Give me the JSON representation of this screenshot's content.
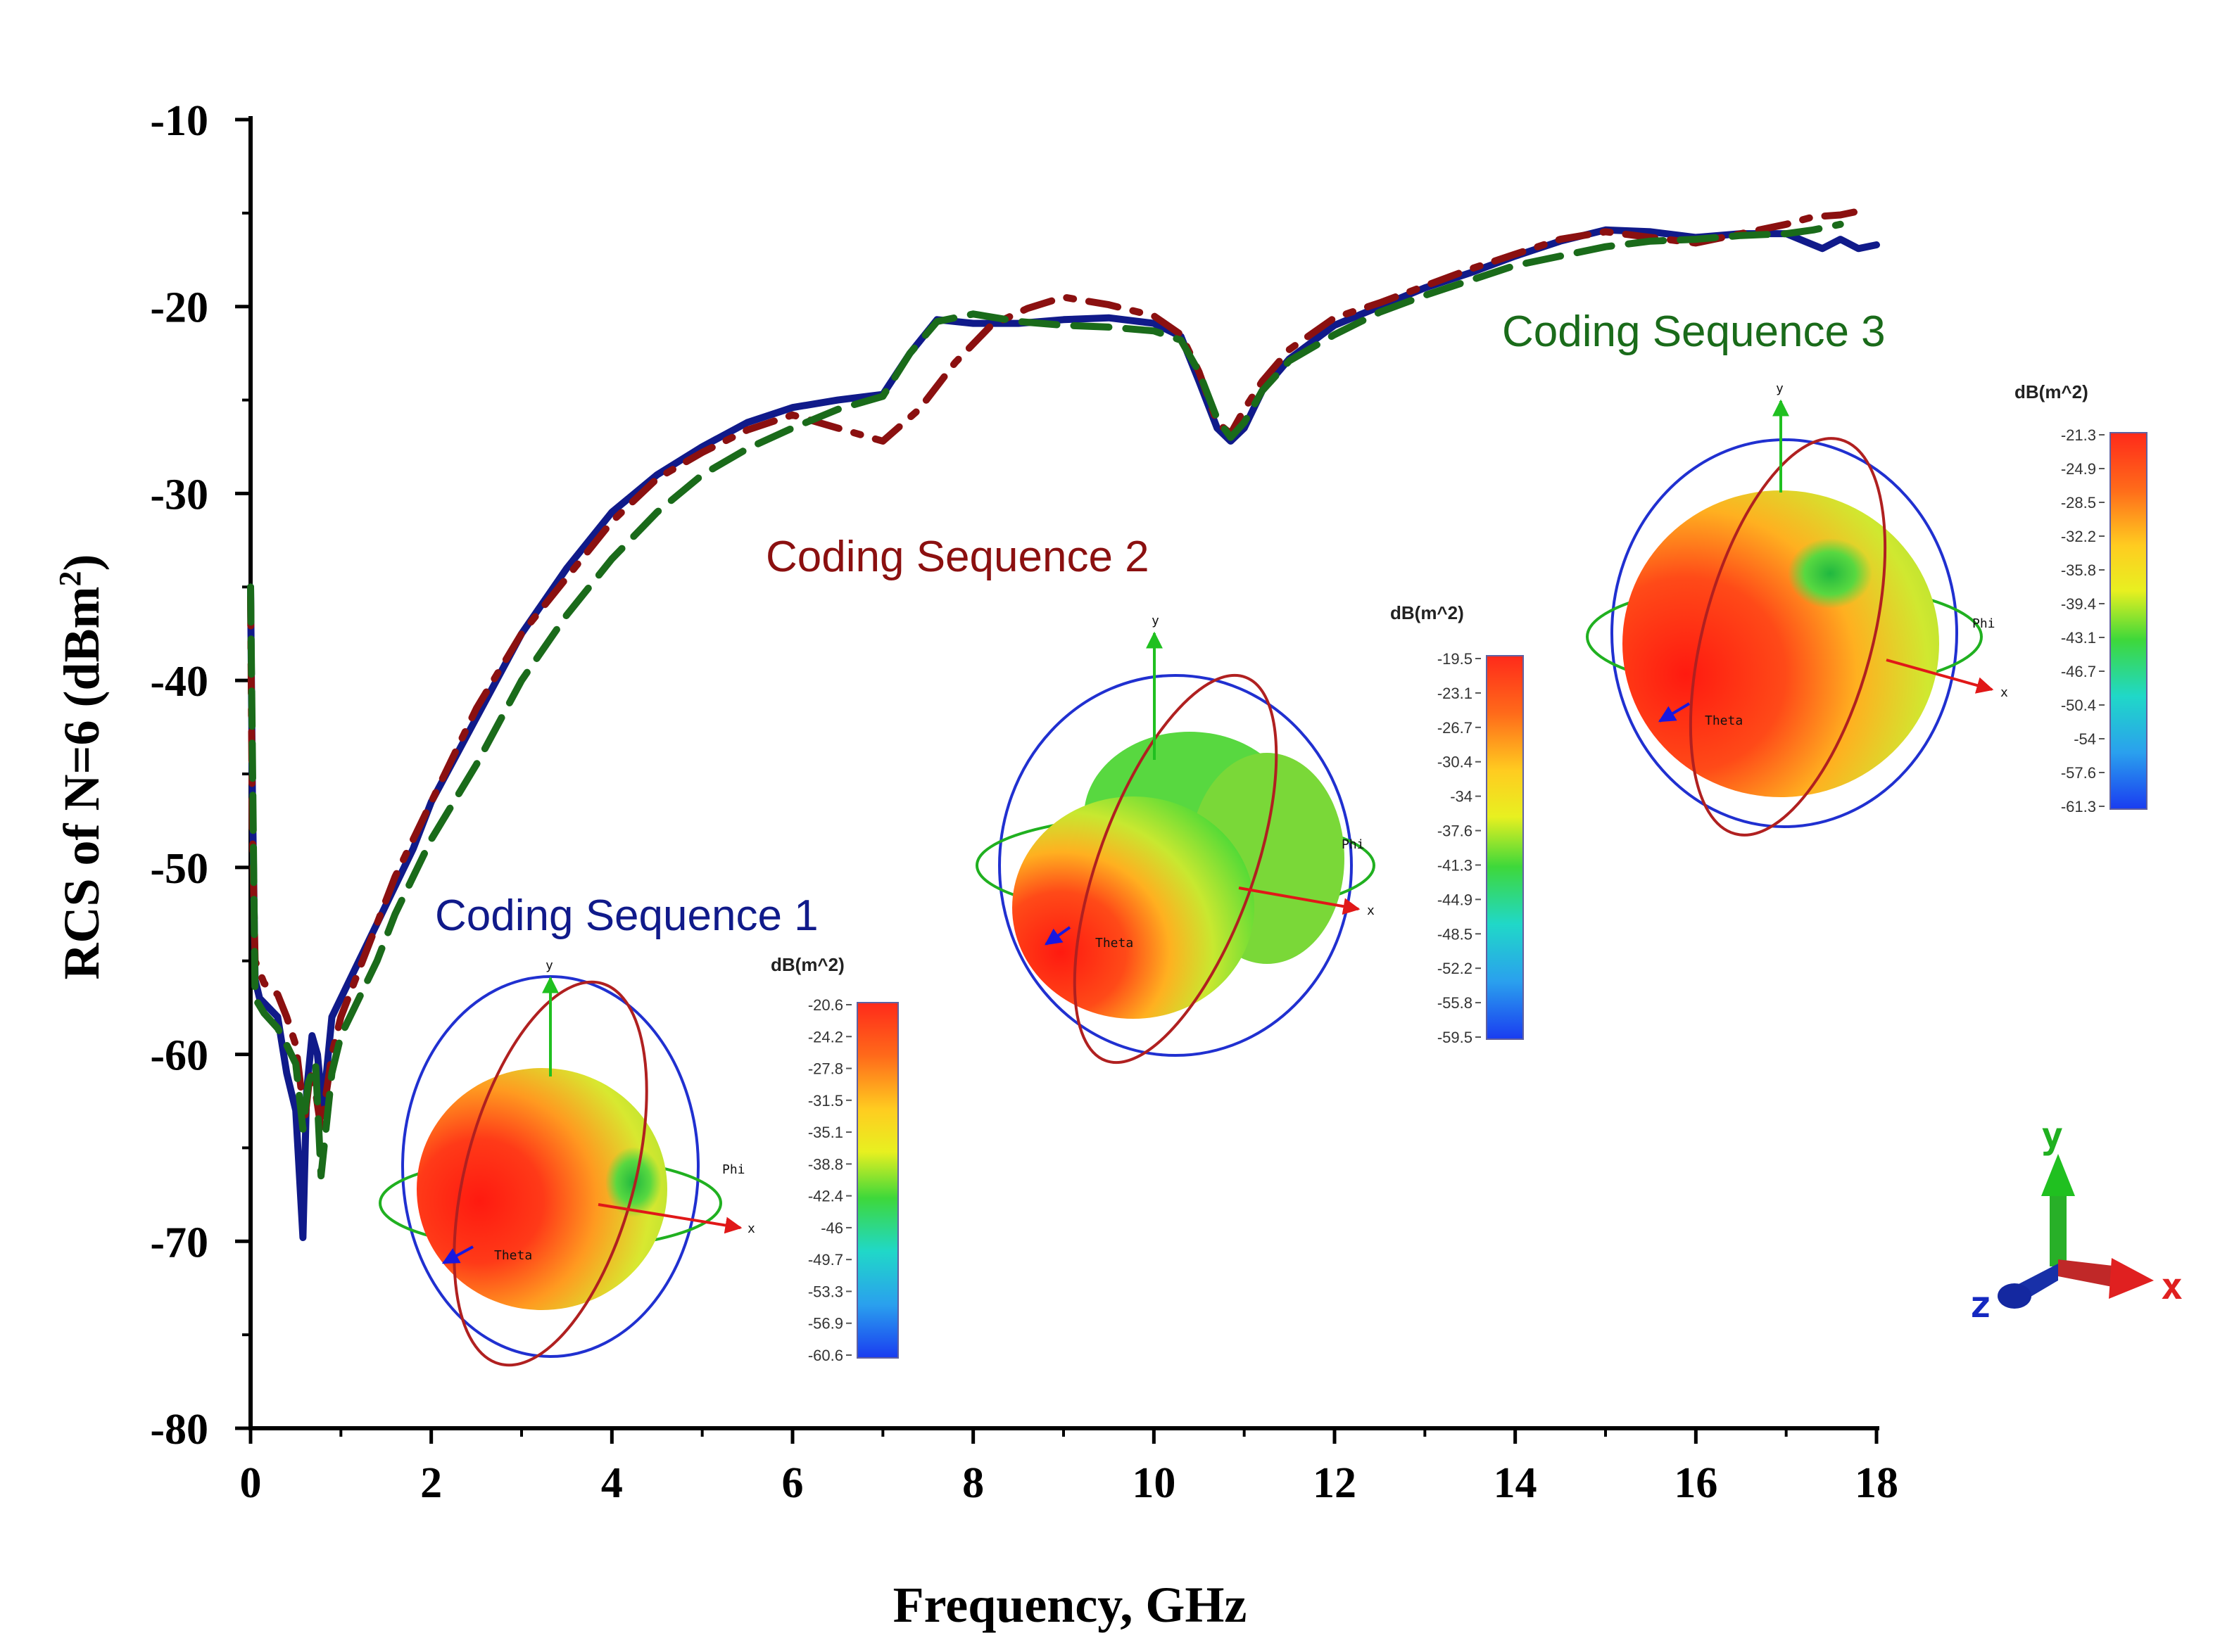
{
  "chart_data": {
    "type": "line",
    "xlabel": "Frequency, GHz",
    "ylabel": "RCS of N=6 (dBm",
    "ylabel_sup": "2",
    "ylabel_close": ")",
    "xlim": [
      0,
      18
    ],
    "ylim": [
      -80,
      -10
    ],
    "xticks": [
      0,
      2,
      4,
      6,
      8,
      10,
      12,
      14,
      16,
      18
    ],
    "xtick_labels": [
      "0",
      "2",
      "4",
      "6",
      "8",
      "10",
      "12",
      "14",
      "16",
      "18"
    ],
    "yticks": [
      -10,
      -20,
      -30,
      -40,
      -50,
      -60,
      -70,
      -80
    ],
    "ytick_labels": [
      "-10",
      "-20",
      "-30",
      "-40",
      "-50",
      "-60",
      "-70",
      "-80"
    ],
    "series": [
      {
        "name": "Coding Sequence 1",
        "color": "#101a8a",
        "style": "solid",
        "points": [
          [
            0,
            -35
          ],
          [
            0.02,
            -46
          ],
          [
            0.05,
            -56
          ],
          [
            0.1,
            -57
          ],
          [
            0.2,
            -57.5
          ],
          [
            0.3,
            -58
          ],
          [
            0.4,
            -61
          ],
          [
            0.5,
            -63
          ],
          [
            0.58,
            -69.8
          ],
          [
            0.62,
            -62
          ],
          [
            0.68,
            -59
          ],
          [
            0.74,
            -60
          ],
          [
            0.8,
            -63
          ],
          [
            0.9,
            -58
          ],
          [
            1.0,
            -57
          ],
          [
            1.2,
            -55
          ],
          [
            1.4,
            -53
          ],
          [
            1.6,
            -51
          ],
          [
            1.8,
            -49
          ],
          [
            2,
            -46.5
          ],
          [
            2.5,
            -42
          ],
          [
            3,
            -37.5
          ],
          [
            3.5,
            -34
          ],
          [
            4,
            -31
          ],
          [
            4.5,
            -29
          ],
          [
            5,
            -27.5
          ],
          [
            5.5,
            -26.2
          ],
          [
            6,
            -25.4
          ],
          [
            6.5,
            -25
          ],
          [
            7,
            -24.7
          ],
          [
            7.3,
            -22.5
          ],
          [
            7.6,
            -20.7
          ],
          [
            8,
            -20.9
          ],
          [
            8.5,
            -20.9
          ],
          [
            9,
            -20.7
          ],
          [
            9.5,
            -20.6
          ],
          [
            10,
            -20.9
          ],
          [
            10.3,
            -21.6
          ],
          [
            10.5,
            -24
          ],
          [
            10.7,
            -26.5
          ],
          [
            10.85,
            -27.2
          ],
          [
            11,
            -26.5
          ],
          [
            11.2,
            -24.5
          ],
          [
            11.5,
            -22.8
          ],
          [
            12,
            -21
          ],
          [
            12.5,
            -20
          ],
          [
            13,
            -19
          ],
          [
            13.5,
            -18.2
          ],
          [
            14,
            -17.3
          ],
          [
            14.5,
            -16.5
          ],
          [
            15,
            -15.9
          ],
          [
            15.5,
            -16
          ],
          [
            16,
            -16.3
          ],
          [
            16.5,
            -16.1
          ],
          [
            17,
            -16.1
          ],
          [
            17.2,
            -16.5
          ],
          [
            17.4,
            -16.9
          ],
          [
            17.6,
            -16.4
          ],
          [
            17.8,
            -16.9
          ],
          [
            18,
            -16.7
          ]
        ]
      },
      {
        "name": "Coding Sequence 2",
        "color": "#8b1010",
        "style": "dashdot",
        "points": [
          [
            0,
            -35.5
          ],
          [
            0.02,
            -48
          ],
          [
            0.05,
            -55
          ],
          [
            0.15,
            -56.2
          ],
          [
            0.3,
            -56.8
          ],
          [
            0.4,
            -58
          ],
          [
            0.5,
            -59.5
          ],
          [
            0.6,
            -63.5
          ],
          [
            0.66,
            -61
          ],
          [
            0.72,
            -62
          ],
          [
            0.78,
            -64
          ],
          [
            0.9,
            -60
          ],
          [
            1.0,
            -58
          ],
          [
            1.2,
            -55.5
          ],
          [
            1.4,
            -53
          ],
          [
            1.6,
            -50.5
          ],
          [
            1.8,
            -48.5
          ],
          [
            2,
            -46.5
          ],
          [
            2.5,
            -41.5
          ],
          [
            3,
            -37.5
          ],
          [
            3.5,
            -34.5
          ],
          [
            4,
            -31.5
          ],
          [
            4.5,
            -29.2
          ],
          [
            5,
            -27.8
          ],
          [
            5.5,
            -26.6
          ],
          [
            6,
            -25.8
          ],
          [
            6.5,
            -26.5
          ],
          [
            7,
            -27.2
          ],
          [
            7.4,
            -25.5
          ],
          [
            7.8,
            -23
          ],
          [
            8.2,
            -21
          ],
          [
            8.6,
            -20.1
          ],
          [
            9,
            -19.5
          ],
          [
            9.5,
            -19.9
          ],
          [
            10,
            -20.5
          ],
          [
            10.3,
            -21.5
          ],
          [
            10.5,
            -23.5
          ],
          [
            10.7,
            -26.2
          ],
          [
            10.85,
            -26.8
          ],
          [
            11,
            -25.5
          ],
          [
            11.2,
            -24
          ],
          [
            11.5,
            -22.3
          ],
          [
            12,
            -20.6
          ],
          [
            12.5,
            -19.8
          ],
          [
            13,
            -18.9
          ],
          [
            13.5,
            -18
          ],
          [
            14,
            -17.2
          ],
          [
            14.5,
            -16.4
          ],
          [
            15,
            -16
          ],
          [
            15.5,
            -16.3
          ],
          [
            16,
            -16.6
          ],
          [
            16.5,
            -16.1
          ],
          [
            17,
            -15.6
          ],
          [
            17.3,
            -15.2
          ],
          [
            17.6,
            -15.1
          ],
          [
            17.8,
            -14.9
          ]
        ]
      },
      {
        "name": "Coding Sequence 3",
        "color": "#1a6b1a",
        "style": "dashed",
        "points": [
          [
            0,
            -35
          ],
          [
            0.02,
            -44
          ],
          [
            0.05,
            -57
          ],
          [
            0.15,
            -57.8
          ],
          [
            0.3,
            -58.6
          ],
          [
            0.4,
            -59.5
          ],
          [
            0.5,
            -60.5
          ],
          [
            0.58,
            -64
          ],
          [
            0.64,
            -61.5
          ],
          [
            0.72,
            -60.5
          ],
          [
            0.78,
            -66.5
          ],
          [
            0.9,
            -61
          ],
          [
            1.0,
            -59
          ],
          [
            1.2,
            -57
          ],
          [
            1.4,
            -55
          ],
          [
            1.6,
            -52.5
          ],
          [
            1.8,
            -50.5
          ],
          [
            2,
            -48.5
          ],
          [
            2.5,
            -44.5
          ],
          [
            3,
            -40
          ],
          [
            3.5,
            -36.5
          ],
          [
            4,
            -33.5
          ],
          [
            4.5,
            -31
          ],
          [
            5,
            -29
          ],
          [
            5.5,
            -27.6
          ],
          [
            6,
            -26.5
          ],
          [
            6.5,
            -25.5
          ],
          [
            7,
            -24.8
          ],
          [
            7.3,
            -22.5
          ],
          [
            7.6,
            -20.8
          ],
          [
            8,
            -20.4
          ],
          [
            8.5,
            -20.8
          ],
          [
            9,
            -21
          ],
          [
            9.5,
            -21.1
          ],
          [
            10,
            -21.3
          ],
          [
            10.3,
            -21.8
          ],
          [
            10.5,
            -23.5
          ],
          [
            10.7,
            -26
          ],
          [
            10.85,
            -27
          ],
          [
            11,
            -26.2
          ],
          [
            11.2,
            -24.5
          ],
          [
            11.5,
            -22.9
          ],
          [
            12,
            -21.5
          ],
          [
            12.5,
            -20.3
          ],
          [
            13,
            -19.4
          ],
          [
            13.5,
            -18.6
          ],
          [
            14,
            -17.8
          ],
          [
            14.5,
            -17.3
          ],
          [
            15,
            -16.8
          ],
          [
            15.5,
            -16.5
          ],
          [
            16,
            -16.4
          ],
          [
            16.5,
            -16.2
          ],
          [
            17,
            -16.1
          ],
          [
            17.3,
            -15.9
          ],
          [
            17.6,
            -15.6
          ]
        ]
      }
    ],
    "annotations": [
      {
        "text": "Coding Sequence 1",
        "color": "#101a8a"
      },
      {
        "text": "Coding Sequence 2",
        "color": "#8b1010"
      },
      {
        "text": "Coding Sequence 3",
        "color": "#1a6b1a"
      }
    ]
  },
  "insets": [
    {
      "name": "Coding Sequence 1",
      "colorbar_title": "dB(m^2)",
      "ticks": [
        "-20.6",
        "-24.2",
        "-27.8",
        "-31.5",
        "-35.1",
        "-38.8",
        "-42.4",
        "-46",
        "-49.7",
        "-53.3",
        "-56.9",
        "-60.6"
      ]
    },
    {
      "name": "Coding Sequence 2",
      "colorbar_title": "dB(m^2)",
      "ticks": [
        "-19.5",
        "-23.1",
        "-26.7",
        "-30.4",
        "-34",
        "-37.6",
        "-41.3",
        "-44.9",
        "-48.5",
        "-52.2",
        "-55.8",
        "-59.5"
      ]
    },
    {
      "name": "Coding Sequence 3",
      "colorbar_title": "dB(m^2)",
      "ticks": [
        "-21.3",
        "-24.9",
        "-28.5",
        "-32.2",
        "-35.8",
        "-39.4",
        "-43.1",
        "-46.7",
        "-50.4",
        "-54",
        "-57.6",
        "-61.3"
      ]
    }
  ],
  "axis_words": {
    "x": "x",
    "y": "y",
    "phi": "Phi",
    "theta": "Theta"
  },
  "triad": {
    "x": "x",
    "y": "y",
    "z": "z"
  }
}
